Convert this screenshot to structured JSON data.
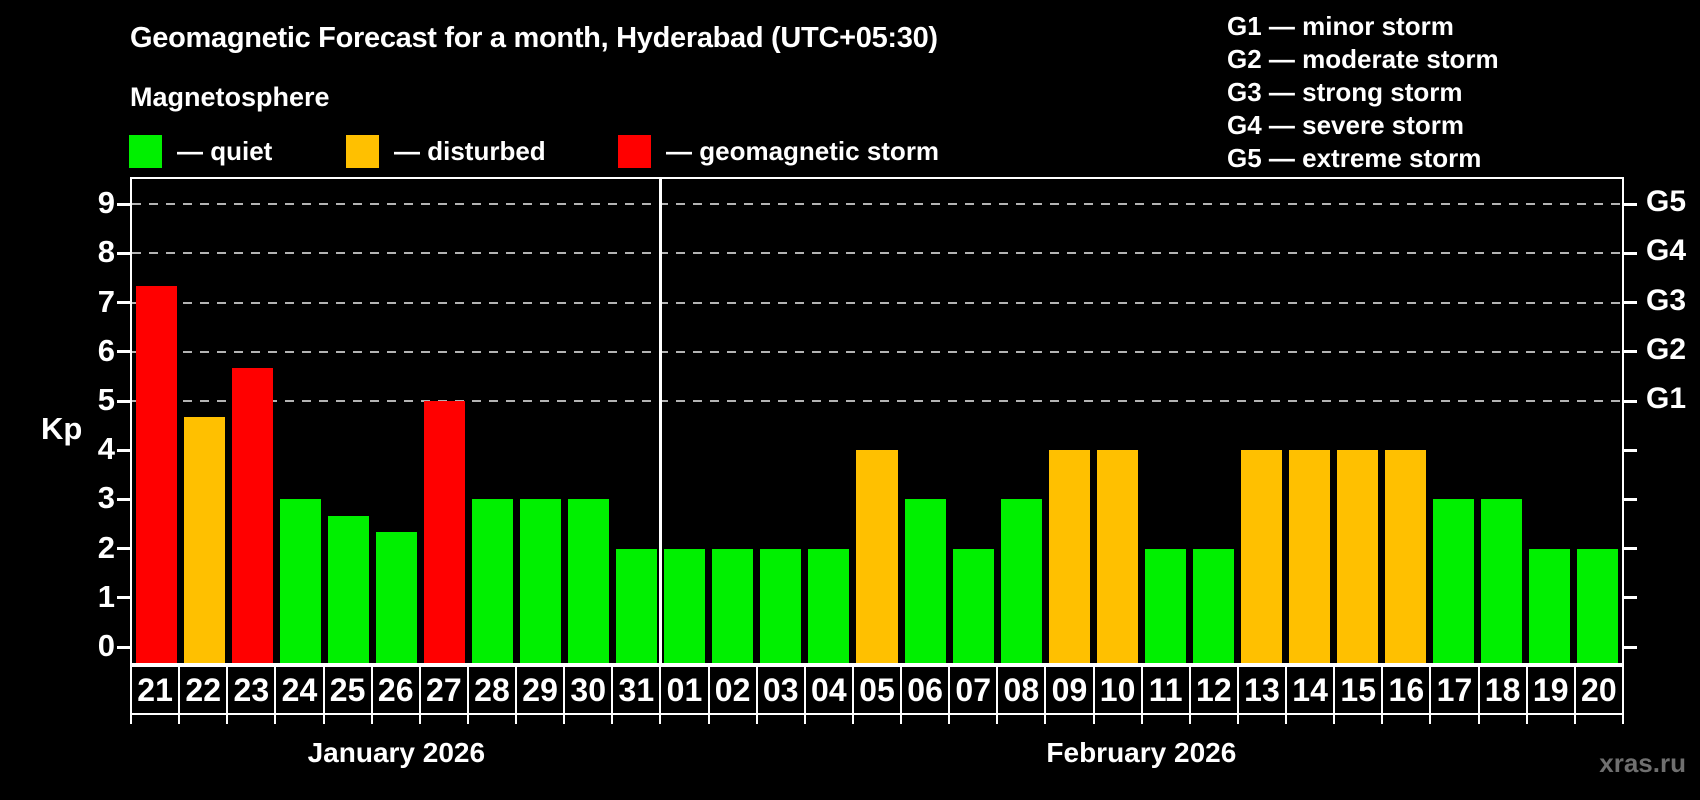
{
  "header": {
    "title": "Geomagnetic Forecast for a month, Hyderabad (UTC+05:30)",
    "subtitle": "Magnetosphere"
  },
  "legend": {
    "items": [
      {
        "name": "quiet",
        "label": "— quiet",
        "color": "#00f000"
      },
      {
        "name": "disturbed",
        "label": "— disturbed",
        "color": "#ffc000"
      },
      {
        "name": "storm",
        "label": "— geomagnetic storm",
        "color": "#ff0000"
      }
    ]
  },
  "g_scale_legend": {
    "lines": [
      "G1 — minor storm",
      "G2 — moderate storm",
      "G3 — strong storm",
      "G4 — severe storm",
      "G5 — extreme storm"
    ]
  },
  "watermark": "xras.ru",
  "chart_data": {
    "type": "bar",
    "title": "Geomagnetic Forecast for a month, Hyderabad (UTC+05:30)",
    "subtitle": "Magnetosphere",
    "ylabel": "Kp",
    "ylim": [
      0,
      9
    ],
    "yticks": [
      0,
      1,
      2,
      3,
      4,
      5,
      6,
      7,
      8,
      9
    ],
    "gridlines_at": [
      5,
      6,
      7,
      8,
      9
    ],
    "grid_style": "dashed",
    "legend_position": "top",
    "right_axis": [
      {
        "kp": 5,
        "label": "G1"
      },
      {
        "kp": 6,
        "label": "G2"
      },
      {
        "kp": 7,
        "label": "G3"
      },
      {
        "kp": 8,
        "label": "G4"
      },
      {
        "kp": 9,
        "label": "G5"
      }
    ],
    "status_colors": {
      "quiet": "#00f000",
      "disturbed": "#ffc000",
      "storm": "#ff0000"
    },
    "months": [
      {
        "label": "January 2026",
        "days": [
          {
            "day": "21",
            "kp": 7.33,
            "status": "storm"
          },
          {
            "day": "22",
            "kp": 4.67,
            "status": "disturbed"
          },
          {
            "day": "23",
            "kp": 5.67,
            "status": "storm"
          },
          {
            "day": "24",
            "kp": 3.0,
            "status": "quiet"
          },
          {
            "day": "25",
            "kp": 2.67,
            "status": "quiet"
          },
          {
            "day": "26",
            "kp": 2.33,
            "status": "quiet"
          },
          {
            "day": "27",
            "kp": 5.0,
            "status": "storm"
          },
          {
            "day": "28",
            "kp": 3.0,
            "status": "quiet"
          },
          {
            "day": "29",
            "kp": 3.0,
            "status": "quiet"
          },
          {
            "day": "30",
            "kp": 3.0,
            "status": "quiet"
          },
          {
            "day": "31",
            "kp": 2.0,
            "status": "quiet"
          }
        ]
      },
      {
        "label": "February 2026",
        "days": [
          {
            "day": "01",
            "kp": 2.0,
            "status": "quiet"
          },
          {
            "day": "02",
            "kp": 2.0,
            "status": "quiet"
          },
          {
            "day": "03",
            "kp": 2.0,
            "status": "quiet"
          },
          {
            "day": "04",
            "kp": 2.0,
            "status": "quiet"
          },
          {
            "day": "05",
            "kp": 4.0,
            "status": "disturbed"
          },
          {
            "day": "06",
            "kp": 3.0,
            "status": "quiet"
          },
          {
            "day": "07",
            "kp": 2.0,
            "status": "quiet"
          },
          {
            "day": "08",
            "kp": 3.0,
            "status": "quiet"
          },
          {
            "day": "09",
            "kp": 4.0,
            "status": "disturbed"
          },
          {
            "day": "10",
            "kp": 4.0,
            "status": "disturbed"
          },
          {
            "day": "11",
            "kp": 2.0,
            "status": "quiet"
          },
          {
            "day": "12",
            "kp": 2.0,
            "status": "quiet"
          },
          {
            "day": "13",
            "kp": 4.0,
            "status": "disturbed"
          },
          {
            "day": "14",
            "kp": 4.0,
            "status": "disturbed"
          },
          {
            "day": "15",
            "kp": 4.0,
            "status": "disturbed"
          },
          {
            "day": "16",
            "kp": 4.0,
            "status": "disturbed"
          },
          {
            "day": "17",
            "kp": 3.0,
            "status": "quiet"
          },
          {
            "day": "18",
            "kp": 3.0,
            "status": "quiet"
          },
          {
            "day": "19",
            "kp": 2.0,
            "status": "quiet"
          },
          {
            "day": "20",
            "kp": 2.0,
            "status": "quiet"
          }
        ]
      }
    ]
  }
}
